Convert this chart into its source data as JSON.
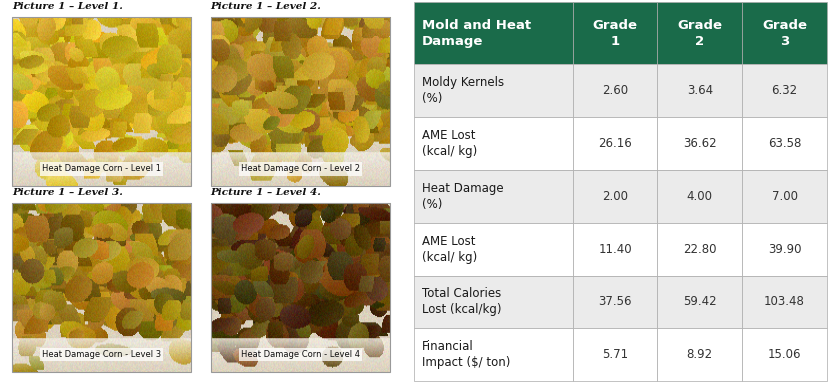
{
  "table_header_bg": "#1a6b4a",
  "table_header_text": "#ffffff",
  "table_row_bg_odd": "#ebebeb",
  "table_row_bg_even": "#ffffff",
  "table_border": "#aaaaaa",
  "header_col": "Mold and Heat\nDamage",
  "header_grades": [
    "Grade\n1",
    "Grade\n2",
    "Grade\n3"
  ],
  "rows": [
    {
      "label": "Moldy Kernels\n(%)",
      "values": [
        "2.60",
        "3.64",
        "6.32"
      ]
    },
    {
      "label": "AME Lost\n(kcal/ kg)",
      "values": [
        "26.16",
        "36.62",
        "63.58"
      ]
    },
    {
      "label": "Heat Damage\n(%)",
      "values": [
        "2.00",
        "4.00",
        "7.00"
      ]
    },
    {
      "label": "AME Lost\n(kcal/ kg)",
      "values": [
        "11.40",
        "22.80",
        "39.90"
      ]
    },
    {
      "label": "Total Calories\nLost (kcal/kg)",
      "values": [
        "37.56",
        "59.42",
        "103.48"
      ]
    },
    {
      "label": "Financial\nImpact ($/ ton)",
      "values": [
        "5.71",
        "8.92",
        "15.06"
      ]
    }
  ],
  "pic_labels": [
    "Picture 1 – Level 1.",
    "Picture 1 – Level 2.",
    "Picture 1 – Level 3.",
    "Picture 1 – Level 4."
  ],
  "pic_sublabels": [
    "Heat Damage Corn - Level 1",
    "Heat Damage Corn - Level 2",
    "Heat Damage Corn - Level 3",
    "Heat Damage Corn - Level 4"
  ],
  "bg_color": "#ffffff",
  "label_fontsize": 8.5,
  "value_fontsize": 8.5,
  "header_fontsize": 9.5,
  "pic_label_fontsize": 7.5,
  "pic_sublabel_fontsize": 6.0,
  "panel_base_colors": [
    [
      [
        220,
        185,
        40
      ],
      [
        180,
        150,
        20
      ],
      [
        200,
        170,
        30
      ]
    ],
    [
      [
        190,
        155,
        35
      ],
      [
        140,
        110,
        20
      ],
      [
        170,
        130,
        25
      ]
    ],
    [
      [
        175,
        140,
        30
      ],
      [
        120,
        95,
        18
      ],
      [
        155,
        118,
        22
      ]
    ],
    [
      [
        110,
        75,
        15
      ],
      [
        70,
        45,
        8
      ],
      [
        90,
        60,
        12
      ]
    ]
  ]
}
